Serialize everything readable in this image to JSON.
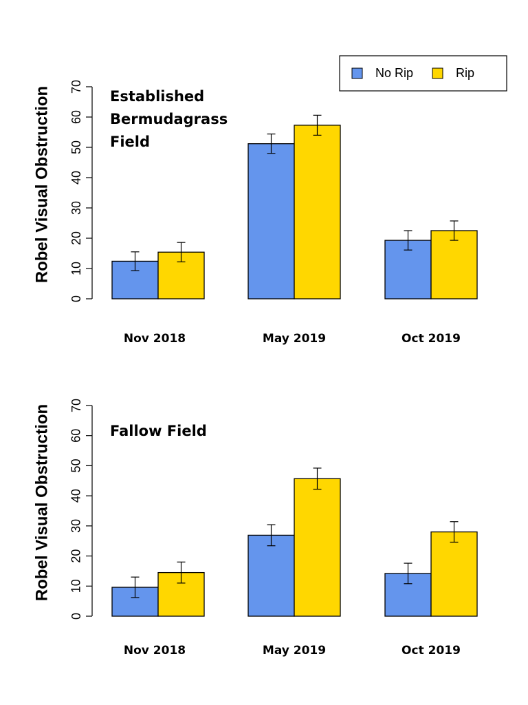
{
  "colors": {
    "no_rip": "#6495ED",
    "rip": "#FFD700",
    "stroke": "#000000"
  },
  "legend": {
    "entries": [
      "No Rip",
      "Rip"
    ],
    "placement": "top-right"
  },
  "chart_data": [
    {
      "type": "bar",
      "title": "",
      "annotation": [
        "Established",
        "Bermudagrass",
        "Field"
      ],
      "ylabel": "Robel Visual Obstruction",
      "xlabel": "",
      "ylim": [
        0,
        70
      ],
      "yticks": [
        0,
        10,
        20,
        30,
        40,
        50,
        60,
        70
      ],
      "categories": [
        "Nov 2018",
        "May 2019",
        "Oct 2019"
      ],
      "series": [
        {
          "name": "No Rip",
          "values": [
            12.4,
            51.2,
            19.3
          ],
          "error": [
            3.1,
            3.2,
            3.2
          ]
        },
        {
          "name": "Rip",
          "values": [
            15.4,
            57.3,
            22.5
          ],
          "error": [
            3.2,
            3.3,
            3.2
          ]
        }
      ]
    },
    {
      "type": "bar",
      "title": "",
      "annotation": [
        "Fallow Field"
      ],
      "ylabel": "Robel Visual Obstruction",
      "xlabel": "",
      "ylim": [
        0,
        70
      ],
      "yticks": [
        0,
        10,
        20,
        30,
        40,
        50,
        60,
        70
      ],
      "categories": [
        "Nov 2018",
        "May 2019",
        "Oct 2019"
      ],
      "series": [
        {
          "name": "No Rip",
          "values": [
            9.6,
            26.9,
            14.2
          ],
          "error": [
            3.4,
            3.5,
            3.4
          ]
        },
        {
          "name": "Rip",
          "values": [
            14.5,
            45.7,
            28.0
          ],
          "error": [
            3.5,
            3.5,
            3.4
          ]
        }
      ]
    }
  ]
}
